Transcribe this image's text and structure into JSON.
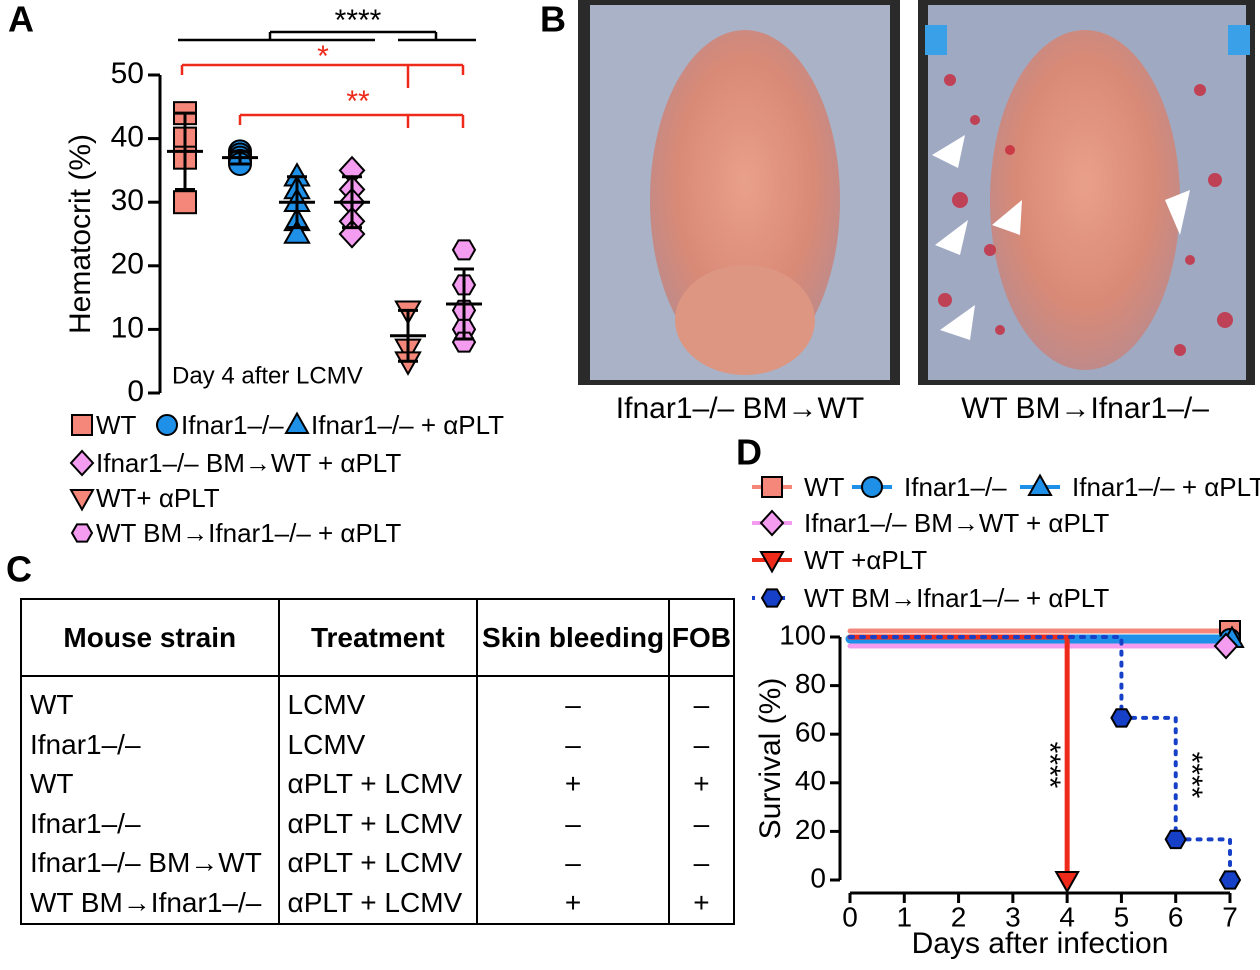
{
  "panel_labels": [
    "A",
    "B",
    "C",
    "D"
  ],
  "chart_data": [
    {
      "type": "dotplot",
      "ylabel": "Hematocrit (%)",
      "annotation": "Day 4 after LCMV",
      "ylim": [
        0,
        50
      ],
      "yticks": [
        0,
        10,
        20,
        30,
        40,
        50
      ],
      "significance": [
        "****",
        "*",
        "**"
      ],
      "series": [
        {
          "name": "WT",
          "color": "#f4877a",
          "marker": "square",
          "values": [
            44,
            40,
            37,
            30
          ],
          "mean": 38,
          "sd": 6
        },
        {
          "name": "Ifnar1–/–",
          "color": "#1e90e8",
          "marker": "circle",
          "values": [
            38,
            37.5,
            37,
            36.5,
            36
          ],
          "mean": 37,
          "sd": 1
        },
        {
          "name": "Ifnar1–/– + αPLT",
          "color": "#1e90e8",
          "marker": "triangle",
          "values": [
            34,
            32,
            30,
            27,
            25
          ],
          "mean": 30,
          "sd": 4
        },
        {
          "name": "Ifnar1–/– BM→WT + αPLT",
          "color": "#f39cf0",
          "marker": "diamond",
          "values": [
            35,
            32,
            30,
            27,
            25
          ],
          "mean": 30,
          "sd": 4
        },
        {
          "name": "WT+ αPLT",
          "color": "#f4877a",
          "marker": "triangle-down",
          "values": [
            13,
            7,
            5
          ],
          "mean": 9,
          "sd": 4
        },
        {
          "name": "WT BM→Ifnar1–/– + αPLT",
          "color": "#f39cf0",
          "marker": "hexagon",
          "values": [
            22.5,
            17,
            13,
            10,
            8
          ],
          "mean": 14,
          "sd": 5.5
        }
      ]
    },
    {
      "type": "survival",
      "xlabel": "Days after infection",
      "ylabel": "Survival (%)",
      "x": [
        0,
        1,
        2,
        3,
        4,
        5,
        6,
        7
      ],
      "xlim": [
        0,
        7
      ],
      "xticks": [
        0,
        1,
        2,
        3,
        4,
        5,
        6,
        7
      ],
      "ylim": [
        0,
        100
      ],
      "yticks": [
        0,
        20,
        40,
        60,
        80,
        100
      ],
      "annotations": [
        "****",
        "****"
      ],
      "series": [
        {
          "name": "WT",
          "color": "#f4877a",
          "marker": "square",
          "style": "solid",
          "values": [
            100,
            100,
            100,
            100,
            100,
            100,
            100,
            100
          ]
        },
        {
          "name": "Ifnar1–/–",
          "color": "#1e90e8",
          "marker": "circle",
          "style": "solid",
          "values": [
            100,
            100,
            100,
            100,
            100,
            100,
            100,
            100
          ]
        },
        {
          "name": "Ifnar1–/– + αPLT",
          "color": "#1e90e8",
          "marker": "triangle",
          "style": "solid",
          "values": [
            100,
            100,
            100,
            100,
            100,
            100,
            100,
            100
          ]
        },
        {
          "name": "Ifnar1–/– BM→WT + αPLT",
          "color": "#f39cf0",
          "marker": "diamond",
          "style": "solid",
          "values": [
            100,
            100,
            100,
            100,
            100,
            100,
            100,
            100
          ]
        },
        {
          "name": "WT +αPLT",
          "color": "#ee2a1a",
          "marker": "triangle-down",
          "style": "solid",
          "values": [
            100,
            100,
            100,
            100,
            0,
            null,
            null,
            null
          ]
        },
        {
          "name": "WT BM→Ifnar1–/– + αPLT",
          "color": "#1740c8",
          "marker": "hexagon",
          "style": "dotted",
          "values": [
            100,
            100,
            100,
            100,
            100,
            66.7,
            16.7,
            0
          ]
        }
      ]
    }
  ],
  "photos": {
    "captions": [
      "Ifnar1–/– BM→WT",
      "WT BM→Ifnar1–/–"
    ]
  },
  "table": {
    "header": [
      "Mouse strain",
      "Treatment",
      "Skin bleeding",
      "FOB"
    ],
    "rows": [
      [
        "WT",
        "LCMV",
        "–",
        "–"
      ],
      [
        "Ifnar1–/–",
        "LCMV",
        "–",
        "–"
      ],
      [
        "WT",
        "αPLT + LCMV",
        "+",
        "+"
      ],
      [
        "Ifnar1–/–",
        "αPLT + LCMV",
        "–",
        "–"
      ],
      [
        "Ifnar1–/– BM→WT",
        "αPLT + LCMV",
        "–",
        "–"
      ],
      [
        "WT BM→Ifnar1–/–",
        "αPLT + LCMV",
        "+",
        "+"
      ]
    ]
  }
}
